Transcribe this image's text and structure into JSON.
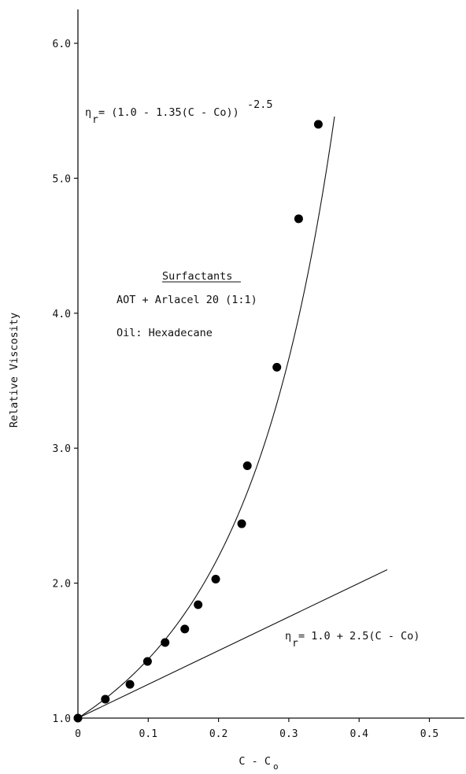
{
  "chart_data": {
    "type": "scatter",
    "xlabel": "C - C",
    "xlabel_subscript": "o",
    "ylabel": "Relative Viscosity",
    "xlim": [
      0,
      0.55
    ],
    "ylim": [
      1.0,
      6.3
    ],
    "x_ticks": [
      "0",
      "0.1",
      "0.2",
      "0.3",
      "0.4",
      "0.5"
    ],
    "y_ticks": [
      "1.0",
      "2.0",
      "3.0",
      "4.0",
      "5.0",
      "6.0"
    ],
    "grid": false,
    "points": [
      {
        "x": 0.0,
        "y": 1.0
      },
      {
        "x": 0.039,
        "y": 1.14
      },
      {
        "x": 0.074,
        "y": 1.25
      },
      {
        "x": 0.099,
        "y": 1.42
      },
      {
        "x": 0.124,
        "y": 1.56
      },
      {
        "x": 0.152,
        "y": 1.66
      },
      {
        "x": 0.171,
        "y": 1.84
      },
      {
        "x": 0.196,
        "y": 2.03
      },
      {
        "x": 0.233,
        "y": 2.44
      },
      {
        "x": 0.241,
        "y": 2.87
      },
      {
        "x": 0.283,
        "y": 3.6
      },
      {
        "x": 0.314,
        "y": 4.7
      },
      {
        "x": 0.342,
        "y": 5.4
      }
    ],
    "curves": [
      {
        "equation": "1.0 + 2.5(C - Co)",
        "x_range": [
          0,
          0.44
        ]
      },
      {
        "equation": "(1.0 - 1.35(C - Co))^-2.5",
        "x_range": [
          0,
          0.365
        ]
      }
    ],
    "annotations": {
      "curve1_symbol": "η",
      "curve1_sub": "r",
      "curve1_text": " = (1.0 - 1.35(C - Co))",
      "curve1_exp": "-2.5",
      "line_symbol": "η",
      "line_sub": "r",
      "line_text": " = 1.0 + 2.5(C - Co)",
      "box_title": "Surfactants",
      "box_line1": "AOT + Arlacel 20 (1:1)",
      "box_line2": "Oil:  Hexadecane"
    }
  }
}
